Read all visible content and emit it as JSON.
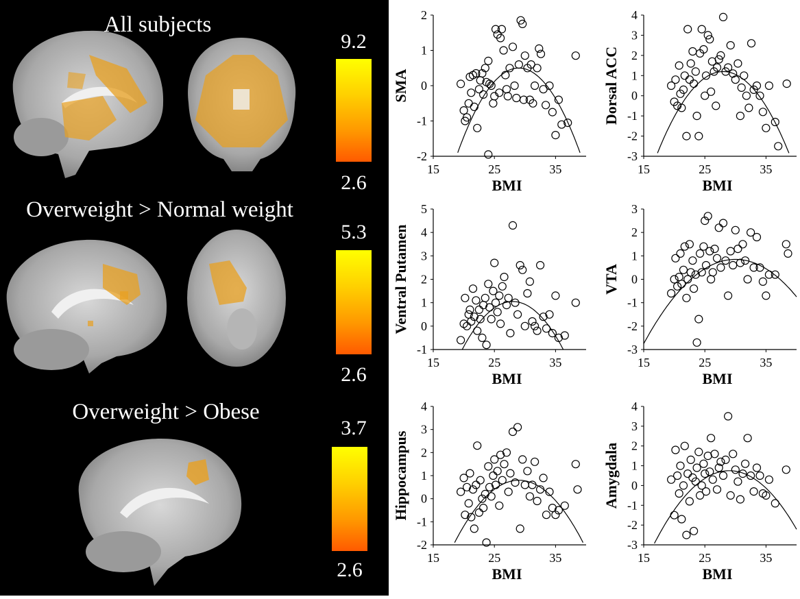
{
  "brain_panel": {
    "sections": [
      {
        "title": "All subjects",
        "cbar_max": "9.2",
        "cbar_min": "2.6"
      },
      {
        "title": "Overweight > Normal weight",
        "cbar_max": "5.3",
        "cbar_min": "2.6"
      },
      {
        "title": "Overweight > Obese",
        "cbar_max": "3.7",
        "cbar_min": "2.6"
      }
    ],
    "colors": {
      "background": "#000000",
      "cbar_top": "#ffff00",
      "cbar_bottom": "#ff5a00",
      "activation": "#e8a020"
    }
  },
  "chart_data": [
    {
      "type": "scatter",
      "ylabel": "SMA",
      "xlabel": "BMI",
      "xlim": [
        15,
        40
      ],
      "ylim": [
        -2,
        2
      ],
      "xticks": [
        "15",
        "25",
        "35"
      ],
      "yticks": [
        "-2",
        "-1",
        "0",
        "1",
        "2"
      ],
      "points": [
        [
          19.5,
          0.05
        ],
        [
          20,
          -0.7
        ],
        [
          20.2,
          -1.0
        ],
        [
          20.5,
          -0.9
        ],
        [
          20.8,
          -0.5
        ],
        [
          21,
          0.25
        ],
        [
          21.2,
          -0.2
        ],
        [
          21.5,
          0.3
        ],
        [
          21.7,
          -0.6
        ],
        [
          22,
          0.35
        ],
        [
          22.2,
          -1.2
        ],
        [
          22.5,
          -0.1
        ],
        [
          22.7,
          0.15
        ],
        [
          23,
          0.35
        ],
        [
          23.2,
          -0.25
        ],
        [
          23.5,
          0.5
        ],
        [
          23.7,
          0.1
        ],
        [
          24,
          -1.95
        ],
        [
          24,
          0.7
        ],
        [
          24.2,
          0.05
        ],
        [
          24.5,
          0.0
        ],
        [
          24.8,
          -0.5
        ],
        [
          25,
          -0.3
        ],
        [
          25.2,
          1.6
        ],
        [
          25.5,
          1.45
        ],
        [
          25.8,
          -0.2
        ],
        [
          26,
          1.35
        ],
        [
          26.2,
          1.6
        ],
        [
          26.5,
          1.0
        ],
        [
          26.8,
          0.3
        ],
        [
          27,
          -0.1
        ],
        [
          27.2,
          -0.3
        ],
        [
          27.5,
          0.5
        ],
        [
          28,
          1.1
        ],
        [
          28.3,
          0.0
        ],
        [
          28.6,
          -0.35
        ],
        [
          29,
          0.6
        ],
        [
          29.3,
          1.85
        ],
        [
          29.6,
          1.75
        ],
        [
          29.8,
          -0.4
        ],
        [
          30,
          0.85
        ],
        [
          30.4,
          0.5
        ],
        [
          30.8,
          -0.4
        ],
        [
          31,
          0.6
        ],
        [
          31.3,
          -0.5
        ],
        [
          31.6,
          0.0
        ],
        [
          32,
          0.5
        ],
        [
          32.3,
          1.05
        ],
        [
          32.6,
          0.9
        ],
        [
          33,
          -0.1
        ],
        [
          33.4,
          -0.55
        ],
        [
          34,
          0.0
        ],
        [
          34.5,
          -0.75
        ],
        [
          35,
          -1.4
        ],
        [
          35.5,
          -0.4
        ],
        [
          36,
          -1.1
        ],
        [
          37,
          -1.05
        ],
        [
          38.3,
          0.85
        ]
      ],
      "fit_curve": {
        "vertex_x": 29,
        "vertex_y": 0.5,
        "a": -0.024
      }
    },
    {
      "type": "scatter",
      "ylabel": "Dorsal ACC",
      "xlabel": "BMI",
      "xlim": [
        15,
        40
      ],
      "ylim": [
        -3,
        4
      ],
      "xticks": [
        "15",
        "25",
        "35"
      ],
      "yticks": [
        "-3",
        "-2",
        "-1",
        "0",
        "1",
        "2",
        "3",
        "4"
      ],
      "points": [
        [
          19.5,
          0.5
        ],
        [
          20,
          -0.3
        ],
        [
          20.2,
          0.8
        ],
        [
          20.5,
          -0.5
        ],
        [
          20.8,
          1.5
        ],
        [
          21,
          0.1
        ],
        [
          21.2,
          -0.6
        ],
        [
          21.5,
          0.3
        ],
        [
          21.7,
          1.0
        ],
        [
          22,
          -2.0
        ],
        [
          22.2,
          3.3
        ],
        [
          22.5,
          0.8
        ],
        [
          22.7,
          1.6
        ],
        [
          23,
          2.2
        ],
        [
          23.2,
          0.6
        ],
        [
          23.5,
          1.2
        ],
        [
          23.7,
          -1.0
        ],
        [
          24,
          -2.0
        ],
        [
          24.2,
          2.1
        ],
        [
          24.5,
          3.3
        ],
        [
          24.8,
          2.3
        ],
        [
          25,
          0.0
        ],
        [
          25.2,
          1.0
        ],
        [
          25.5,
          3.0
        ],
        [
          25.8,
          2.8
        ],
        [
          26,
          0.2
        ],
        [
          26.2,
          1.7
        ],
        [
          26.5,
          1.2
        ],
        [
          26.8,
          -0.5
        ],
        [
          27,
          1.4
        ],
        [
          27.3,
          1.8
        ],
        [
          27.6,
          2.0
        ],
        [
          28,
          3.9
        ],
        [
          28.4,
          1.2
        ],
        [
          28.8,
          1.4
        ],
        [
          29.2,
          2.5
        ],
        [
          29.6,
          1.1
        ],
        [
          30,
          0.8
        ],
        [
          30.4,
          1.6
        ],
        [
          30.8,
          -1.0
        ],
        [
          31,
          0.4
        ],
        [
          31.4,
          1.0
        ],
        [
          31.8,
          0.0
        ],
        [
          32.2,
          -0.6
        ],
        [
          32.6,
          2.6
        ],
        [
          33,
          0.3
        ],
        [
          33.5,
          0.5
        ],
        [
          34,
          0.0
        ],
        [
          34.5,
          -0.8
        ],
        [
          35,
          -1.6
        ],
        [
          35.5,
          0.5
        ],
        [
          36.5,
          -1.3
        ],
        [
          37,
          -2.5
        ],
        [
          38.4,
          0.6
        ]
      ],
      "fit_curve": {
        "vertex_x": 28,
        "vertex_y": 1.2,
        "a": -0.035
      }
    },
    {
      "type": "scatter",
      "ylabel": "Ventral Putamen",
      "xlabel": "BMI",
      "xlim": [
        15,
        40
      ],
      "ylim": [
        -1,
        5
      ],
      "xticks": [
        "15",
        "25",
        "35"
      ],
      "yticks": [
        "-1",
        "0",
        "1",
        "2",
        "3",
        "4",
        "5"
      ],
      "points": [
        [
          19.5,
          -0.6
        ],
        [
          20,
          0.1
        ],
        [
          20.2,
          1.2
        ],
        [
          20.5,
          0.0
        ],
        [
          20.8,
          0.5
        ],
        [
          21,
          0.7
        ],
        [
          21.2,
          0.2
        ],
        [
          21.5,
          1.6
        ],
        [
          21.7,
          0.4
        ],
        [
          22,
          1.1
        ],
        [
          22.2,
          -0.2
        ],
        [
          22.5,
          0.7
        ],
        [
          22.7,
          0.3
        ],
        [
          23,
          -0.5
        ],
        [
          23.2,
          0.9
        ],
        [
          23.5,
          1.2
        ],
        [
          23.7,
          -0.8
        ],
        [
          24,
          1.8
        ],
        [
          24.2,
          0.8
        ],
        [
          24.5,
          0.3
        ],
        [
          24.8,
          1.5
        ],
        [
          25,
          2.7
        ],
        [
          25.2,
          1.0
        ],
        [
          25.5,
          0.6
        ],
        [
          25.8,
          1.3
        ],
        [
          26,
          0.1
        ],
        [
          26.3,
          1.7
        ],
        [
          26.6,
          2.1
        ],
        [
          27,
          0.9
        ],
        [
          27.3,
          1.2
        ],
        [
          27.6,
          -0.3
        ],
        [
          28,
          4.3
        ],
        [
          28.4,
          1.0
        ],
        [
          28.8,
          0.5
        ],
        [
          29.2,
          2.6
        ],
        [
          29.6,
          2.4
        ],
        [
          30,
          0.0
        ],
        [
          30.4,
          1.4
        ],
        [
          30.8,
          1.9
        ],
        [
          31.2,
          0.2
        ],
        [
          31.6,
          0.0
        ],
        [
          32,
          -0.2
        ],
        [
          32.5,
          2.6
        ],
        [
          33,
          0.4
        ],
        [
          33.5,
          -0.1
        ],
        [
          34,
          0.5
        ],
        [
          34.5,
          -0.3
        ],
        [
          35,
          1.3
        ],
        [
          35.5,
          -0.5
        ],
        [
          36.5,
          -0.4
        ],
        [
          38.3,
          1.0
        ]
      ],
      "fit_curve": {
        "vertex_x": 28,
        "vertex_y": 1.05,
        "a": -0.03
      }
    },
    {
      "type": "scatter",
      "ylabel": "VTA",
      "xlabel": "BMI",
      "xlim": [
        15,
        40
      ],
      "ylim": [
        -3,
        3
      ],
      "xticks": [
        "15",
        "25",
        "35"
      ],
      "yticks": [
        "-3",
        "-2",
        "-1",
        "0",
        "1",
        "2",
        "3"
      ],
      "points": [
        [
          19.5,
          -0.6
        ],
        [
          20,
          0.0
        ],
        [
          20.2,
          0.9
        ],
        [
          20.5,
          -0.3
        ],
        [
          20.8,
          0.1
        ],
        [
          21,
          1.1
        ],
        [
          21.2,
          -0.2
        ],
        [
          21.5,
          0.4
        ],
        [
          21.7,
          1.4
        ],
        [
          22,
          -0.8
        ],
        [
          22.2,
          0.0
        ],
        [
          22.5,
          1.5
        ],
        [
          22.7,
          0.3
        ],
        [
          23,
          0.8
        ],
        [
          23.2,
          -0.4
        ],
        [
          23.5,
          0.2
        ],
        [
          23.7,
          -2.7
        ],
        [
          24,
          -1.7
        ],
        [
          24.2,
          1.1
        ],
        [
          24.5,
          0.3
        ],
        [
          24.8,
          1.4
        ],
        [
          25,
          2.5
        ],
        [
          25.2,
          0.6
        ],
        [
          25.5,
          2.7
        ],
        [
          25.8,
          1.2
        ],
        [
          26,
          0.0
        ],
        [
          26.3,
          0.3
        ],
        [
          26.6,
          1.3
        ],
        [
          27,
          0.9
        ],
        [
          27.3,
          2.2
        ],
        [
          27.6,
          0.5
        ],
        [
          28,
          2.4
        ],
        [
          28.4,
          0.8
        ],
        [
          28.8,
          -0.7
        ],
        [
          29.2,
          1.2
        ],
        [
          29.6,
          0.6
        ],
        [
          30,
          2.1
        ],
        [
          30.4,
          1.3
        ],
        [
          30.8,
          0.7
        ],
        [
          31.2,
          1.5
        ],
        [
          31.6,
          0.8
        ],
        [
          32,
          0.0
        ],
        [
          32.5,
          2.0
        ],
        [
          33,
          0.5
        ],
        [
          33.5,
          1.8
        ],
        [
          34,
          0.5
        ],
        [
          34.5,
          -0.1
        ],
        [
          35,
          -0.7
        ],
        [
          35.5,
          0.2
        ],
        [
          36.5,
          0.2
        ],
        [
          38.3,
          1.5
        ],
        [
          38.6,
          1.1
        ]
      ],
      "fit_curve": {
        "vertex_x": 30,
        "vertex_y": 0.85,
        "a": -0.016
      }
    },
    {
      "type": "scatter",
      "ylabel": "Hippocampus",
      "xlabel": "BMI",
      "xlim": [
        15,
        40
      ],
      "ylim": [
        -2,
        4
      ],
      "xticks": [
        "15",
        "25",
        "35"
      ],
      "yticks": [
        "-2",
        "-1",
        "0",
        "1",
        "2",
        "3",
        "4"
      ],
      "points": [
        [
          19.5,
          0.3
        ],
        [
          20,
          0.9
        ],
        [
          20.2,
          -0.7
        ],
        [
          20.5,
          0.5
        ],
        [
          20.8,
          -0.2
        ],
        [
          21,
          1.1
        ],
        [
          21.2,
          -0.8
        ],
        [
          21.5,
          0.4
        ],
        [
          21.7,
          -1.3
        ],
        [
          22,
          0.6
        ],
        [
          22.2,
          2.3
        ],
        [
          22.5,
          -0.6
        ],
        [
          22.7,
          0.8
        ],
        [
          23,
          0.0
        ],
        [
          23.2,
          -0.4
        ],
        [
          23.5,
          0.2
        ],
        [
          23.7,
          -1.9
        ],
        [
          24,
          1.4
        ],
        [
          24.2,
          0.5
        ],
        [
          24.5,
          0.1
        ],
        [
          24.8,
          1.0
        ],
        [
          25,
          1.7
        ],
        [
          25.2,
          0.6
        ],
        [
          25.5,
          1.2
        ],
        [
          25.8,
          -0.3
        ],
        [
          26,
          1.9
        ],
        [
          26.3,
          0.8
        ],
        [
          26.6,
          1.5
        ],
        [
          27,
          2.0
        ],
        [
          27.3,
          0.3
        ],
        [
          27.6,
          1.1
        ],
        [
          28,
          2.9
        ],
        [
          28.4,
          0.7
        ],
        [
          28.8,
          3.1
        ],
        [
          29.2,
          -1.3
        ],
        [
          29.6,
          1.7
        ],
        [
          30,
          0.6
        ],
        [
          30.4,
          1.2
        ],
        [
          30.8,
          0.1
        ],
        [
          31.2,
          0.6
        ],
        [
          31.6,
          1.6
        ],
        [
          32,
          -0.1
        ],
        [
          32.5,
          0.4
        ],
        [
          33,
          0.9
        ],
        [
          33.5,
          -0.7
        ],
        [
          34,
          0.3
        ],
        [
          34.5,
          -0.4
        ],
        [
          35,
          -0.7
        ],
        [
          35.5,
          -0.5
        ],
        [
          36.5,
          -0.3
        ],
        [
          38.3,
          1.5
        ],
        [
          38.6,
          0.4
        ]
      ],
      "fit_curve": {
        "vertex_x": 29,
        "vertex_y": 0.8,
        "a": -0.0245
      }
    },
    {
      "type": "scatter",
      "ylabel": "Amygdala",
      "xlabel": "BMI",
      "xlim": [
        15,
        40
      ],
      "ylim": [
        -3,
        4
      ],
      "xticks": [
        "15",
        "25",
        "35"
      ],
      "yticks": [
        "-3",
        "-2",
        "-1",
        "0",
        "1",
        "2",
        "3",
        "4"
      ],
      "points": [
        [
          19.5,
          0.3
        ],
        [
          20,
          -1.5
        ],
        [
          20.2,
          1.8
        ],
        [
          20.5,
          0.5
        ],
        [
          20.8,
          -0.4
        ],
        [
          21,
          1.0
        ],
        [
          21.2,
          -1.7
        ],
        [
          21.5,
          0.0
        ],
        [
          21.7,
          2.0
        ],
        [
          22,
          -2.5
        ],
        [
          22.2,
          0.6
        ],
        [
          22.5,
          -0.8
        ],
        [
          22.7,
          1.3
        ],
        [
          23,
          0.4
        ],
        [
          23.2,
          -2.3
        ],
        [
          23.5,
          0.2
        ],
        [
          23.7,
          0.9
        ],
        [
          24,
          1.7
        ],
        [
          24.2,
          -0.5
        ],
        [
          24.5,
          0.0
        ],
        [
          24.8,
          1.1
        ],
        [
          25,
          0.6
        ],
        [
          25.2,
          -0.3
        ],
        [
          25.5,
          1.5
        ],
        [
          25.8,
          0.7
        ],
        [
          26,
          2.4
        ],
        [
          26.3,
          0.3
        ],
        [
          26.6,
          1.6
        ],
        [
          27,
          -0.2
        ],
        [
          27.3,
          0.9
        ],
        [
          27.6,
          1.2
        ],
        [
          28,
          0.5
        ],
        [
          28.4,
          1.3
        ],
        [
          28.8,
          3.5
        ],
        [
          29.2,
          -0.5
        ],
        [
          29.6,
          1.6
        ],
        [
          30,
          0.8
        ],
        [
          30.4,
          0.2
        ],
        [
          30.8,
          -0.7
        ],
        [
          31.2,
          0.6
        ],
        [
          31.6,
          1.1
        ],
        [
          32,
          2.4
        ],
        [
          32.5,
          0.5
        ],
        [
          33,
          -0.3
        ],
        [
          33.5,
          0.9
        ],
        [
          34,
          0.5
        ],
        [
          34.5,
          -0.4
        ],
        [
          35,
          -0.5
        ],
        [
          35.5,
          0.3
        ],
        [
          36.5,
          -0.9
        ],
        [
          38.3,
          0.8
        ]
      ],
      "fit_curve": {
        "vertex_x": 29,
        "vertex_y": 0.75,
        "a": -0.0245
      }
    }
  ]
}
